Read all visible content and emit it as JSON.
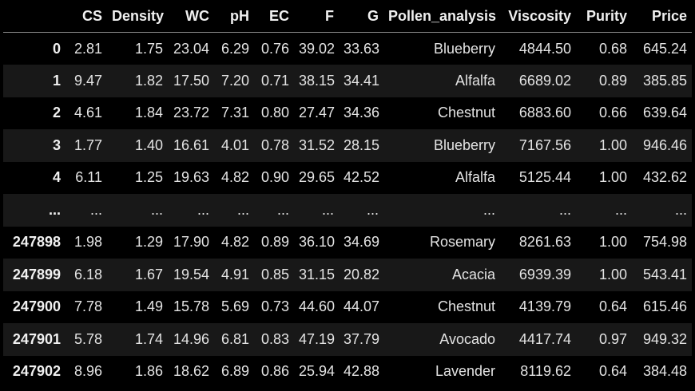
{
  "table": {
    "columns": [
      "",
      "CS",
      "Density",
      "WC",
      "pH",
      "EC",
      "F",
      "G",
      "Pollen_analysis",
      "Viscosity",
      "Purity",
      "Price"
    ],
    "rows": [
      {
        "index": "0",
        "cells": [
          "2.81",
          "1.75",
          "23.04",
          "6.29",
          "0.76",
          "39.02",
          "33.63",
          "Blueberry",
          "4844.50",
          "0.68",
          "645.24"
        ]
      },
      {
        "index": "1",
        "cells": [
          "9.47",
          "1.82",
          "17.50",
          "7.20",
          "0.71",
          "38.15",
          "34.41",
          "Alfalfa",
          "6689.02",
          "0.89",
          "385.85"
        ]
      },
      {
        "index": "2",
        "cells": [
          "4.61",
          "1.84",
          "23.72",
          "7.31",
          "0.80",
          "27.47",
          "34.36",
          "Chestnut",
          "6883.60",
          "0.66",
          "639.64"
        ]
      },
      {
        "index": "3",
        "cells": [
          "1.77",
          "1.40",
          "16.61",
          "4.01",
          "0.78",
          "31.52",
          "28.15",
          "Blueberry",
          "7167.56",
          "1.00",
          "946.46"
        ]
      },
      {
        "index": "4",
        "cells": [
          "6.11",
          "1.25",
          "19.63",
          "4.82",
          "0.90",
          "29.65",
          "42.52",
          "Alfalfa",
          "5125.44",
          "1.00",
          "432.62"
        ]
      },
      {
        "index": "...",
        "cells": [
          "...",
          "...",
          "...",
          "...",
          "...",
          "...",
          "...",
          "...",
          "...",
          "...",
          "..."
        ]
      },
      {
        "index": "247898",
        "cells": [
          "1.98",
          "1.29",
          "17.90",
          "4.82",
          "0.89",
          "36.10",
          "34.69",
          "Rosemary",
          "8261.63",
          "1.00",
          "754.98"
        ]
      },
      {
        "index": "247899",
        "cells": [
          "6.18",
          "1.67",
          "19.54",
          "4.91",
          "0.85",
          "31.15",
          "20.82",
          "Acacia",
          "6939.39",
          "1.00",
          "543.41"
        ]
      },
      {
        "index": "247900",
        "cells": [
          "7.78",
          "1.49",
          "15.78",
          "5.69",
          "0.73",
          "44.60",
          "44.07",
          "Chestnut",
          "4139.79",
          "0.64",
          "615.46"
        ]
      },
      {
        "index": "247901",
        "cells": [
          "5.78",
          "1.74",
          "14.96",
          "6.81",
          "0.83",
          "47.19",
          "37.79",
          "Avocado",
          "4417.74",
          "0.97",
          "949.32"
        ]
      },
      {
        "index": "247902",
        "cells": [
          "8.96",
          "1.86",
          "18.62",
          "6.89",
          "0.86",
          "25.94",
          "42.88",
          "Lavender",
          "8119.62",
          "0.64",
          "384.48"
        ]
      }
    ]
  },
  "colors": {
    "background": "#000000",
    "row_stripe": "#181818",
    "text": "#e3e3e3",
    "header_rule": "#8a8a8a"
  }
}
